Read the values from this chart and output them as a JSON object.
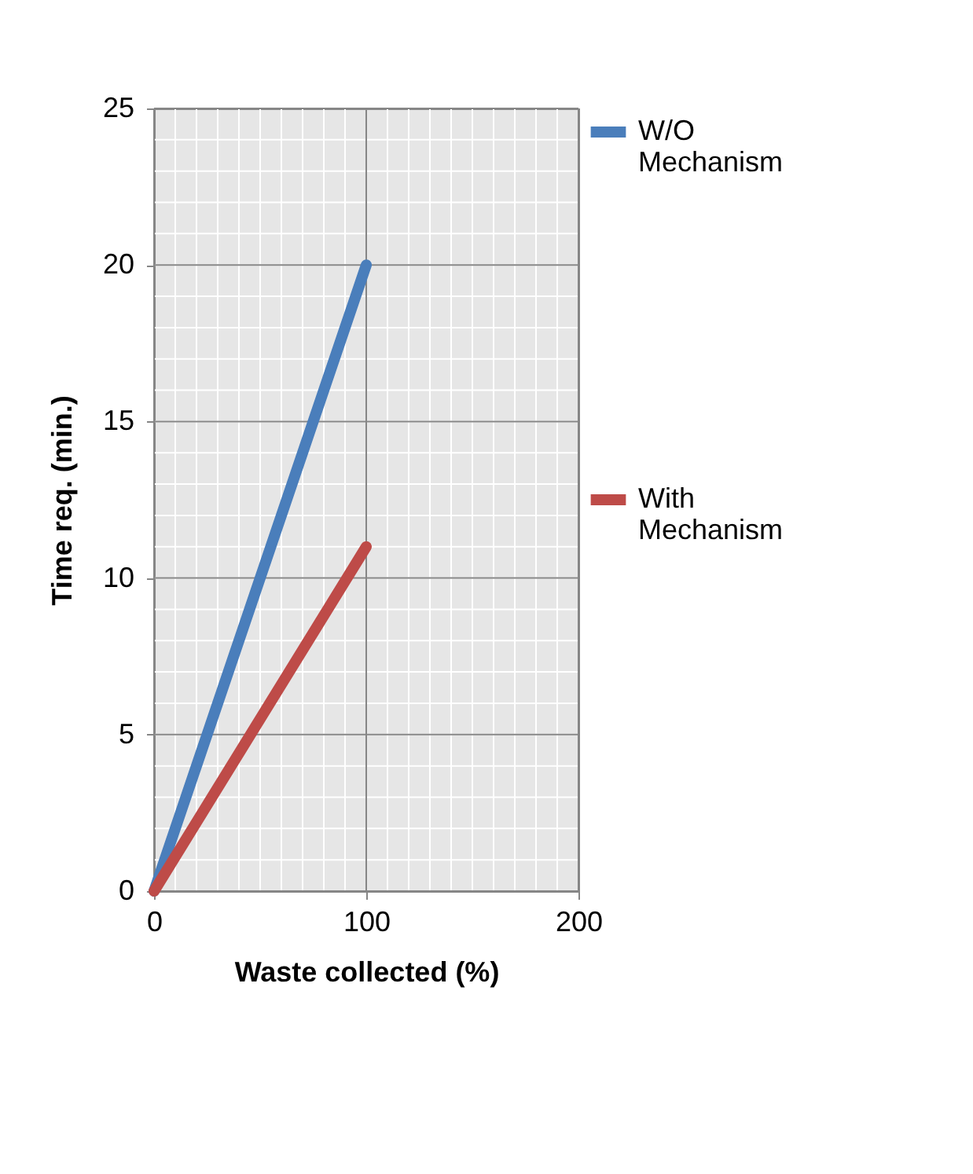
{
  "chart_data": {
    "type": "line",
    "xlabel": "Waste collected (%)",
    "ylabel": "Time req. (min.)",
    "x": [
      0,
      100
    ],
    "series": [
      {
        "name": "W/O Mechanism",
        "color": "#4a7ebb",
        "values": [
          0,
          20
        ]
      },
      {
        "name": "With Mechanism",
        "color": "#be4b48",
        "values": [
          0,
          11
        ]
      }
    ],
    "xlim": [
      0,
      200
    ],
    "xticks": [
      0,
      100,
      200
    ],
    "ylim": [
      0,
      25
    ],
    "yticks": [
      0,
      5,
      10,
      15,
      20,
      25
    ],
    "grid": true,
    "legend": "right",
    "marker": "none",
    "line_style": "solid"
  }
}
